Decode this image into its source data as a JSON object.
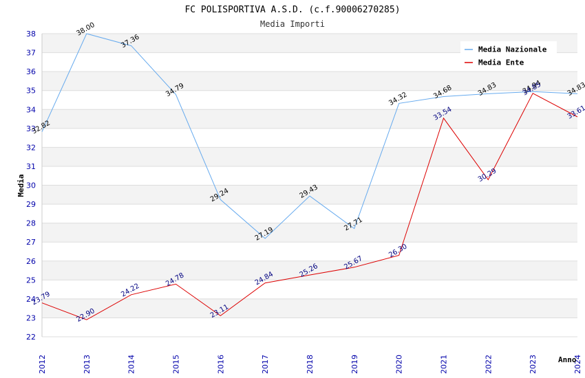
{
  "chart_data": {
    "type": "line",
    "title": "FC POLISPORTIVA A.S.D. (c.f.90006270285)",
    "subtitle": "Media Importi",
    "xlabel": "Anno",
    "ylabel": "Media",
    "ylim": [
      22,
      38
    ],
    "yticks": [
      "22",
      "23",
      "24",
      "25",
      "26",
      "27",
      "28",
      "29",
      "30",
      "31",
      "32",
      "33",
      "34",
      "35",
      "36",
      "37",
      "38"
    ],
    "categories": [
      "2012",
      "2013",
      "2014",
      "2015",
      "2016",
      "2017",
      "2018",
      "2019",
      "2020",
      "2021",
      "2022",
      "2023",
      "2024"
    ],
    "series": [
      {
        "name": "Media Nazionale",
        "color": "#66aaee",
        "label_color": "#000000",
        "values": [
          32.82,
          38.0,
          37.36,
          34.79,
          29.24,
          27.19,
          29.43,
          27.71,
          34.32,
          34.68,
          34.83,
          34.94,
          34.83
        ],
        "labels": [
          "32.82",
          "38.00",
          "37.36",
          "34.79",
          "29.24",
          "27.19",
          "29.43",
          "27.71",
          "34.32",
          "34.68",
          "34.83",
          "34.94",
          "34.83"
        ]
      },
      {
        "name": "Media Ente",
        "color": "#dd0000",
        "label_color": "#000080",
        "values": [
          23.79,
          22.9,
          24.22,
          24.78,
          23.11,
          24.84,
          25.26,
          25.67,
          26.3,
          33.54,
          30.29,
          34.85,
          33.61
        ],
        "labels": [
          "23.79",
          "22.90",
          "24.22",
          "24.78",
          "23.11",
          "24.84",
          "25.26",
          "25.67",
          "26.30",
          "33.54",
          "30.29",
          "34.85",
          "33.61"
        ]
      }
    ],
    "grid": true,
    "legend_position": "top-right"
  }
}
